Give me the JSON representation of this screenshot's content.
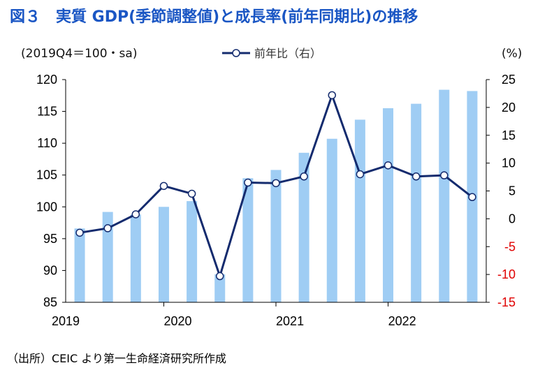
{
  "title": "図３　実質 GDP(季節調整値)と成長率(前年同期比)の推移",
  "source": "（出所）CEIC より第一生命経済研究所作成",
  "chart_data": {
    "type": "bar",
    "left_unit": "(2019Q4＝100・sa)",
    "right_unit": "(%)",
    "legend": [
      {
        "name": "前年比（右）",
        "kind": "line",
        "color": "#142b6e"
      }
    ],
    "year_labels": [
      "2019",
      "2020",
      "2021",
      "2022"
    ],
    "categories": [
      "2019Q1",
      "2019Q2",
      "2019Q3",
      "2019Q4",
      "2020Q1",
      "2020Q2",
      "2020Q3",
      "2020Q4",
      "2021Q1",
      "2021Q2",
      "2021Q3",
      "2021Q4",
      "2022Q1",
      "2022Q2",
      "2022Q3"
    ],
    "bars": {
      "color": "#9fcdf4",
      "values": [
        96.6,
        99.2,
        98.8,
        100.0,
        100.9,
        89.4,
        104.5,
        105.8,
        108.5,
        110.7,
        113.7,
        115.5,
        116.2,
        118.4,
        118.2
      ]
    },
    "line": {
      "color": "#142b6e",
      "values": [
        -2.5,
        -1.7,
        0.8,
        5.9,
        4.5,
        -10.3,
        6.5,
        6.4,
        7.6,
        22.2,
        8.0,
        9.6,
        7.6,
        7.8,
        3.9
      ]
    },
    "y_left": {
      "min": 85,
      "max": 120,
      "ticks": [
        "85",
        "90",
        "95",
        "100",
        "105",
        "110",
        "115",
        "120"
      ]
    },
    "y_right": {
      "min": -15,
      "max": 25,
      "ticks": [
        "-15",
        "-10",
        "-5",
        "0",
        "5",
        "10",
        "15",
        "20",
        "25"
      ]
    },
    "grid": false
  }
}
